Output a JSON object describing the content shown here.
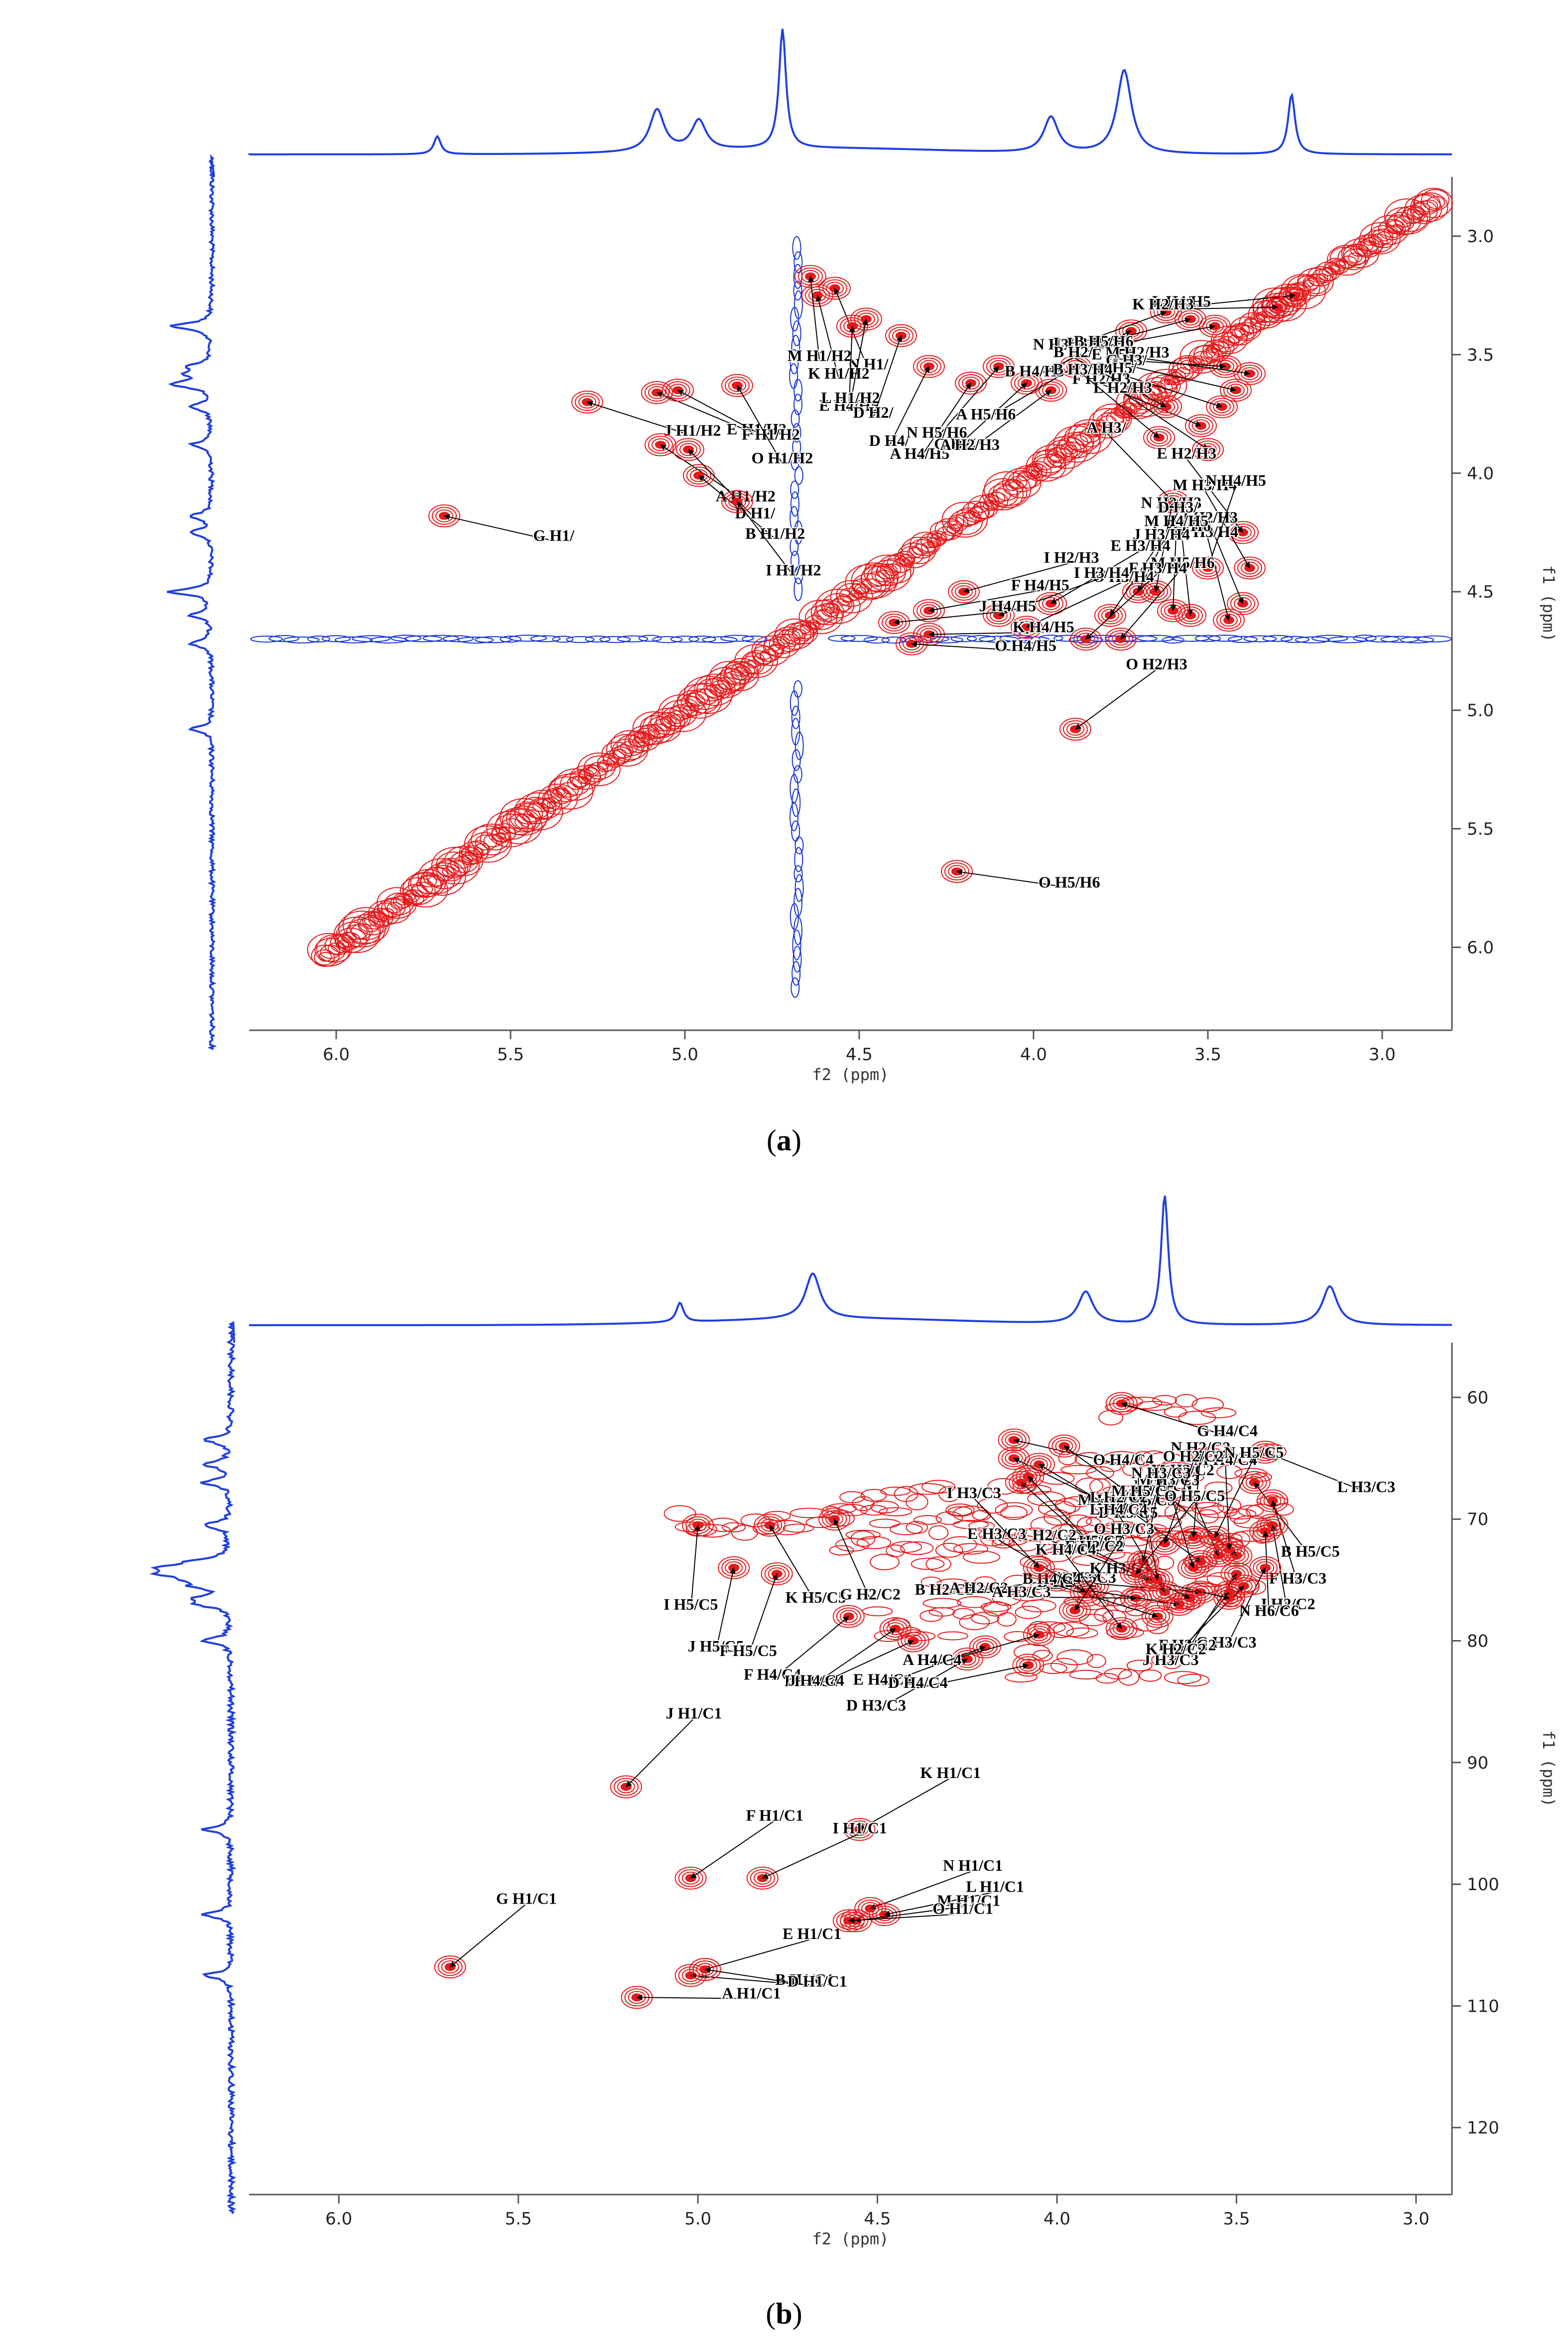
{
  "captions": [
    "a",
    "b"
  ],
  "colors": {
    "positive": "#e8191b",
    "negative": "#1432d8",
    "projection": "#1f3fe0",
    "label": "#000000",
    "axis": "#555555"
  },
  "chart_data": [
    {
      "type": "heatmap",
      "kind": "2D NMR COSY spectrum",
      "xlabel": "f2 (ppm)",
      "ylabel": "f1 (ppm)",
      "xlim": [
        6.25,
        2.8
      ],
      "ylim": [
        2.75,
        6.35
      ],
      "xticks": [
        6.0,
        5.5,
        5.0,
        4.5,
        4.0,
        3.5,
        3.0
      ],
      "yticks": [
        3.0,
        3.5,
        4.0,
        4.5,
        5.0,
        5.5,
        6.0
      ],
      "projection_peaks_ppm": [
        5.71,
        5.08,
        4.96,
        4.72,
        3.95,
        3.74,
        3.26
      ],
      "cross_peaks": [
        {
          "label": "G H1/",
          "x": 5.69,
          "y": 4.18
        },
        {
          "label": "J H1/H2",
          "x": 5.28,
          "y": 3.7
        },
        {
          "label": "E H1/H2",
          "x": 5.08,
          "y": 3.66
        },
        {
          "label": "F H1/H2",
          "x": 5.02,
          "y": 3.65
        },
        {
          "label": "A H1/H2",
          "x": 5.07,
          "y": 3.88
        },
        {
          "label": "B H1/H2",
          "x": 4.96,
          "y": 4.01
        },
        {
          "label": "D H1/",
          "x": 4.99,
          "y": 3.9
        },
        {
          "label": "I H1/H2",
          "x": 4.85,
          "y": 4.12
        },
        {
          "label": "O H1/H2",
          "x": 4.85,
          "y": 3.63
        },
        {
          "label": "N H1/",
          "x": 4.57,
          "y": 3.22
        },
        {
          "label": "K H1/H2",
          "x": 4.62,
          "y": 3.25
        },
        {
          "label": "M H1/H2",
          "x": 4.64,
          "y": 3.17
        },
        {
          "label": "E H4/H5",
          "x": 4.52,
          "y": 3.38
        },
        {
          "label": "L H1/H2",
          "x": 4.48,
          "y": 3.35
        },
        {
          "label": "D H2/",
          "x": 4.38,
          "y": 3.42
        },
        {
          "label": "D H4/",
          "x": 4.3,
          "y": 3.55
        },
        {
          "label": "A H4/H5",
          "x": 4.18,
          "y": 3.62
        },
        {
          "label": "N H5/H6",
          "x": 4.1,
          "y": 3.55
        },
        {
          "label": "G H2/",
          "x": 4.02,
          "y": 3.62
        },
        {
          "label": "A H2/H3",
          "x": 3.95,
          "y": 3.65
        },
        {
          "label": "A H5/H6",
          "x": 3.88,
          "y": 3.55
        },
        {
          "label": "B H4/H5",
          "x": 3.72,
          "y": 3.4
        },
        {
          "label": "N H3/H4",
          "x": 3.62,
          "y": 3.32
        },
        {
          "label": "L H3/H4",
          "x": 3.55,
          "y": 3.35
        },
        {
          "label": "B H5/H6",
          "x": 3.48,
          "y": 3.38
        },
        {
          "label": "L H4/H5",
          "x": 3.25,
          "y": 3.25
        },
        {
          "label": "K H2/H3",
          "x": 3.3,
          "y": 3.3
        },
        {
          "label": "E H5/",
          "x": 3.45,
          "y": 3.55
        },
        {
          "label": "M H2/H3",
          "x": 3.38,
          "y": 3.58
        },
        {
          "label": "G H3/",
          "x": 3.42,
          "y": 3.65
        },
        {
          "label": "D H5/",
          "x": 3.46,
          "y": 3.72
        },
        {
          "label": "F H2/H3",
          "x": 3.52,
          "y": 3.8
        },
        {
          "label": "B H2/",
          "x": 3.62,
          "y": 3.72
        },
        {
          "label": "L H2/H3",
          "x": 3.5,
          "y": 3.9
        },
        {
          "label": "B H3/H4",
          "x": 3.64,
          "y": 3.85
        },
        {
          "label": "A H3/",
          "x": 3.6,
          "y": 4.12
        },
        {
          "label": "E H2/H3",
          "x": 3.4,
          "y": 4.25
        },
        {
          "label": "M H3/H4",
          "x": 3.38,
          "y": 4.4
        },
        {
          "label": "J H2/H3",
          "x": 3.4,
          "y": 4.55
        },
        {
          "label": "K H3/H4",
          "x": 3.44,
          "y": 4.62
        },
        {
          "label": "L H5/H6",
          "x": 3.55,
          "y": 4.6
        },
        {
          "label": "M H4/H5",
          "x": 3.6,
          "y": 4.58
        },
        {
          "label": "N H2/H3",
          "x": 3.65,
          "y": 4.5
        },
        {
          "label": "N H4/H5",
          "x": 3.5,
          "y": 4.4
        },
        {
          "label": "D H3/",
          "x": 3.7,
          "y": 4.5
        },
        {
          "label": "J H3/H4",
          "x": 3.78,
          "y": 4.6
        },
        {
          "label": "M H5/H6",
          "x": 3.75,
          "y": 4.7
        },
        {
          "label": "F H3/H4",
          "x": 3.85,
          "y": 4.7
        },
        {
          "label": "O H2/H3",
          "x": 3.88,
          "y": 5.08
        },
        {
          "label": "E H3/H4",
          "x": 3.95,
          "y": 4.55
        },
        {
          "label": "O H3/H4",
          "x": 4.02,
          "y": 4.65
        },
        {
          "label": "I H3/H4",
          "x": 4.1,
          "y": 4.6
        },
        {
          "label": "I H2/H3",
          "x": 4.2,
          "y": 4.5
        },
        {
          "label": "F H4/H5",
          "x": 4.3,
          "y": 4.58
        },
        {
          "label": "J H4/H5",
          "x": 4.4,
          "y": 4.63
        },
        {
          "label": "K H4/H5",
          "x": 4.3,
          "y": 4.68
        },
        {
          "label": "O H4/H5",
          "x": 4.35,
          "y": 4.72
        },
        {
          "label": "O H5/H6",
          "x": 4.22,
          "y": 5.68
        }
      ]
    },
    {
      "type": "heatmap",
      "kind": "2D NMR HSQC spectrum",
      "xlabel": "f2 (ppm)",
      "ylabel": "f1 (ppm)",
      "xlim": [
        6.25,
        2.9
      ],
      "ylim": [
        55.5,
        125.5
      ],
      "xticks": [
        6.0,
        5.5,
        5.0,
        4.5,
        4.0,
        3.5,
        3.0
      ],
      "yticks": [
        60,
        70,
        80,
        90,
        100,
        110,
        120
      ],
      "projection_peaks_ppm": [
        5.05,
        4.68,
        3.92,
        3.7,
        3.24
      ],
      "cross_peaks": [
        {
          "label": "O H4/C4",
          "x": 4.12,
          "y": 63.5
        },
        {
          "label": "G H4/C4",
          "x": 3.82,
          "y": 60.5
        },
        {
          "label": "L H3/C3",
          "x": 3.42,
          "y": 64.5
        },
        {
          "label": "M H6/C6",
          "x": 4.12,
          "y": 65.0
        },
        {
          "label": "D H5/C5",
          "x": 4.05,
          "y": 65.5
        },
        {
          "label": "A H5/C5",
          "x": 3.98,
          "y": 64.0
        },
        {
          "label": "O H6/C6",
          "x": 4.1,
          "y": 67.0
        },
        {
          "label": "E H5/C5",
          "x": 4.08,
          "y": 66.5
        },
        {
          "label": "B H5/C5",
          "x": 3.45,
          "y": 67.0
        },
        {
          "label": "K H5/C5",
          "x": 4.8,
          "y": 70.5
        },
        {
          "label": "G H2/C2",
          "x": 4.62,
          "y": 70.0
        },
        {
          "label": "F H3/C3",
          "x": 3.4,
          "y": 68.5
        },
        {
          "label": "J H2/C2",
          "x": 3.4,
          "y": 70.5
        },
        {
          "label": "N H6/C6",
          "x": 3.42,
          "y": 71.0
        },
        {
          "label": "I H5/C5",
          "x": 5.0,
          "y": 70.5
        },
        {
          "label": "J H5/C5",
          "x": 4.9,
          "y": 74.0
        },
        {
          "label": "F H5/C5",
          "x": 4.78,
          "y": 74.5
        },
        {
          "label": "G H3/C3",
          "x": 3.42,
          "y": 74.0
        },
        {
          "label": "F H2/C2",
          "x": 3.5,
          "y": 74.5
        },
        {
          "label": "J H3/C3",
          "x": 3.52,
          "y": 76.0
        },
        {
          "label": "K H2/C2",
          "x": 3.48,
          "y": 75.5
        },
        {
          "label": "F H4/C4",
          "x": 4.58,
          "y": 78.0
        },
        {
          "label": "I H4/C4",
          "x": 4.45,
          "y": 79.0
        },
        {
          "label": "D H3/C3",
          "x": 4.25,
          "y": 81.5
        },
        {
          "label": "J H4/C4",
          "x": 4.4,
          "y": 80.0
        },
        {
          "label": "E H4/C4",
          "x": 4.2,
          "y": 80.5
        },
        {
          "label": "A H4/C4",
          "x": 4.05,
          "y": 79.5
        },
        {
          "label": "D H4/C4",
          "x": 4.08,
          "y": 82.0
        },
        {
          "label": "B H2/C2",
          "x": 4.0,
          "y": 75.0
        },
        {
          "label": "A H2/C2",
          "x": 3.9,
          "y": 75.5
        },
        {
          "label": "A H3/C3",
          "x": 3.78,
          "y": 76.5
        },
        {
          "label": "B H3/C3",
          "x": 3.6,
          "y": 76.0
        },
        {
          "label": "D H2/C2",
          "x": 3.66,
          "y": 77.0
        },
        {
          "label": "K H3/C3",
          "x": 3.52,
          "y": 76.5
        },
        {
          "label": "B H4/C4",
          "x": 3.72,
          "y": 78.0
        },
        {
          "label": "I H2/C2",
          "x": 3.74,
          "y": 75.0
        },
        {
          "label": "E H2/C2",
          "x": 3.63,
          "y": 76.5
        },
        {
          "label": "E H3/C3",
          "x": 3.92,
          "y": 76.0
        },
        {
          "label": "L H2/C2",
          "x": 3.6,
          "y": 73.5
        },
        {
          "label": "L H5/C5",
          "x": 3.5,
          "y": 73.0
        },
        {
          "label": "I H3/C3",
          "x": 4.05,
          "y": 74.0
        },
        {
          "label": "K H4/C4",
          "x": 3.82,
          "y": 79.0
        },
        {
          "label": "L H4/C4",
          "x": 3.7,
          "y": 76.0
        },
        {
          "label": "M H2/C2",
          "x": 3.55,
          "y": 73.0
        },
        {
          "label": "M H3/C3",
          "x": 3.62,
          "y": 74.0
        },
        {
          "label": "M H5/C5",
          "x": 3.72,
          "y": 75.0
        },
        {
          "label": "M H4/C4",
          "x": 3.52,
          "y": 72.5
        },
        {
          "label": "N H2/C2",
          "x": 3.62,
          "y": 71.5
        },
        {
          "label": "N H3/C3",
          "x": 3.76,
          "y": 73.5
        },
        {
          "label": "O H2/C2",
          "x": 3.7,
          "y": 72.0
        },
        {
          "label": "N H5/C5",
          "x": 3.56,
          "y": 71.5
        },
        {
          "label": "O H3/C3",
          "x": 3.95,
          "y": 77.5
        },
        {
          "label": "O H5/C5",
          "x": 3.78,
          "y": 74.5
        },
        {
          "label": "J H1/C1",
          "x": 5.2,
          "y": 92.0
        },
        {
          "label": "G H1/C1",
          "x": 5.69,
          "y": 106.8
        },
        {
          "label": "F H1/C1",
          "x": 5.02,
          "y": 99.5
        },
        {
          "label": "K H1/C1",
          "x": 4.55,
          "y": 95.5
        },
        {
          "label": "I H1/C1",
          "x": 4.82,
          "y": 99.5
        },
        {
          "label": "N H1/C1",
          "x": 4.52,
          "y": 102.0
        },
        {
          "label": "E H1/C1",
          "x": 4.98,
          "y": 107.0
        },
        {
          "label": "L H1/C1",
          "x": 4.48,
          "y": 102.5
        },
        {
          "label": "M H1/C1",
          "x": 4.56,
          "y": 103.0
        },
        {
          "label": "O H1/C1",
          "x": 4.58,
          "y": 103.0
        },
        {
          "label": "A H1/C1",
          "x": 5.17,
          "y": 109.3
        },
        {
          "label": "B H1/C1",
          "x": 5.02,
          "y": 107.5
        },
        {
          "label": "D H1/C1",
          "x": 4.98,
          "y": 107.0
        }
      ]
    }
  ]
}
